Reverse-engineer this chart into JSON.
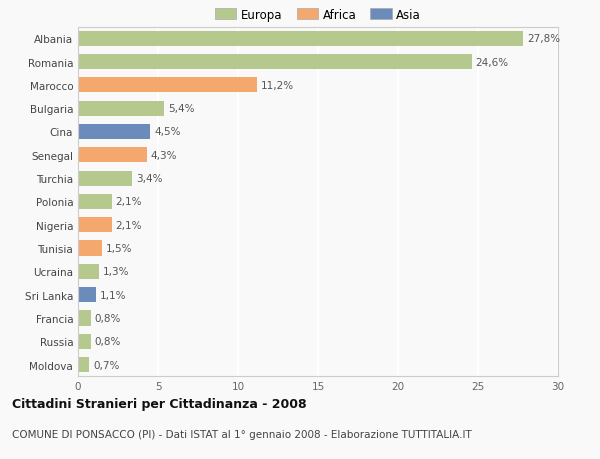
{
  "countries": [
    "Albania",
    "Romania",
    "Marocco",
    "Bulgaria",
    "Cina",
    "Senegal",
    "Turchia",
    "Polonia",
    "Nigeria",
    "Tunisia",
    "Ucraina",
    "Sri Lanka",
    "Francia",
    "Russia",
    "Moldova"
  ],
  "values": [
    27.8,
    24.6,
    11.2,
    5.4,
    4.5,
    4.3,
    3.4,
    2.1,
    2.1,
    1.5,
    1.3,
    1.1,
    0.8,
    0.8,
    0.7
  ],
  "labels": [
    "27,8%",
    "24,6%",
    "11,2%",
    "5,4%",
    "4,5%",
    "4,3%",
    "3,4%",
    "2,1%",
    "2,1%",
    "1,5%",
    "1,3%",
    "1,1%",
    "0,8%",
    "0,8%",
    "0,7%"
  ],
  "continents": [
    "Europa",
    "Europa",
    "Africa",
    "Europa",
    "Asia",
    "Africa",
    "Europa",
    "Europa",
    "Africa",
    "Africa",
    "Europa",
    "Asia",
    "Europa",
    "Europa",
    "Europa"
  ],
  "colors": {
    "Europa": "#b5c98e",
    "Africa": "#f5a86e",
    "Asia": "#6b8cba"
  },
  "xlim": [
    0,
    30
  ],
  "xticks": [
    0,
    5,
    10,
    15,
    20,
    25,
    30
  ],
  "title": "Cittadini Stranieri per Cittadinanza - 2008",
  "subtitle": "COMUNE DI PONSACCO (PI) - Dati ISTAT al 1° gennaio 2008 - Elaborazione TUTTITALIA.IT",
  "background_color": "#f9f9f9",
  "grid_color": "#ffffff",
  "bar_height": 0.65,
  "label_fontsize": 7.5,
  "tick_fontsize": 7.5,
  "title_fontsize": 9,
  "subtitle_fontsize": 7.5,
  "legend_fontsize": 8.5
}
